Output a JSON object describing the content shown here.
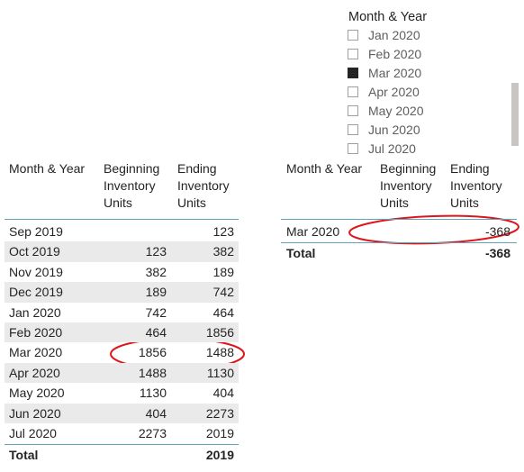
{
  "slicer": {
    "title": "Month & Year",
    "items": [
      {
        "label": "Jan 2020",
        "checked": false
      },
      {
        "label": "Feb 2020",
        "checked": false
      },
      {
        "label": "Mar 2020",
        "checked": true
      },
      {
        "label": "Apr 2020",
        "checked": false
      },
      {
        "label": "May 2020",
        "checked": false
      },
      {
        "label": "Jun 2020",
        "checked": false
      },
      {
        "label": "Jul 2020",
        "checked": false
      }
    ]
  },
  "left_table": {
    "headers": [
      "Month & Year",
      "Beginning Inventory Units",
      "Ending Inventory Units"
    ],
    "rows": [
      [
        "Sep 2019",
        null,
        123
      ],
      [
        "Oct 2019",
        123,
        382
      ],
      [
        "Nov 2019",
        382,
        189
      ],
      [
        "Dec 2019",
        189,
        742
      ],
      [
        "Jan 2020",
        742,
        464
      ],
      [
        "Feb 2020",
        464,
        1856
      ],
      [
        "Mar 2020",
        1856,
        1488
      ],
      [
        "Apr 2020",
        1488,
        1130
      ],
      [
        "May 2020",
        1130,
        404
      ],
      [
        "Jun 2020",
        404,
        2273
      ],
      [
        "Jul 2020",
        2273,
        2019
      ]
    ],
    "total": [
      "Total",
      null,
      2019
    ]
  },
  "right_table": {
    "headers": [
      "Month & Year",
      "Beginning Inventory Units",
      "Ending Inventory Units"
    ],
    "rows": [
      [
        "Mar 2020",
        null,
        -368
      ]
    ],
    "total": [
      "Total",
      null,
      -368
    ]
  }
}
